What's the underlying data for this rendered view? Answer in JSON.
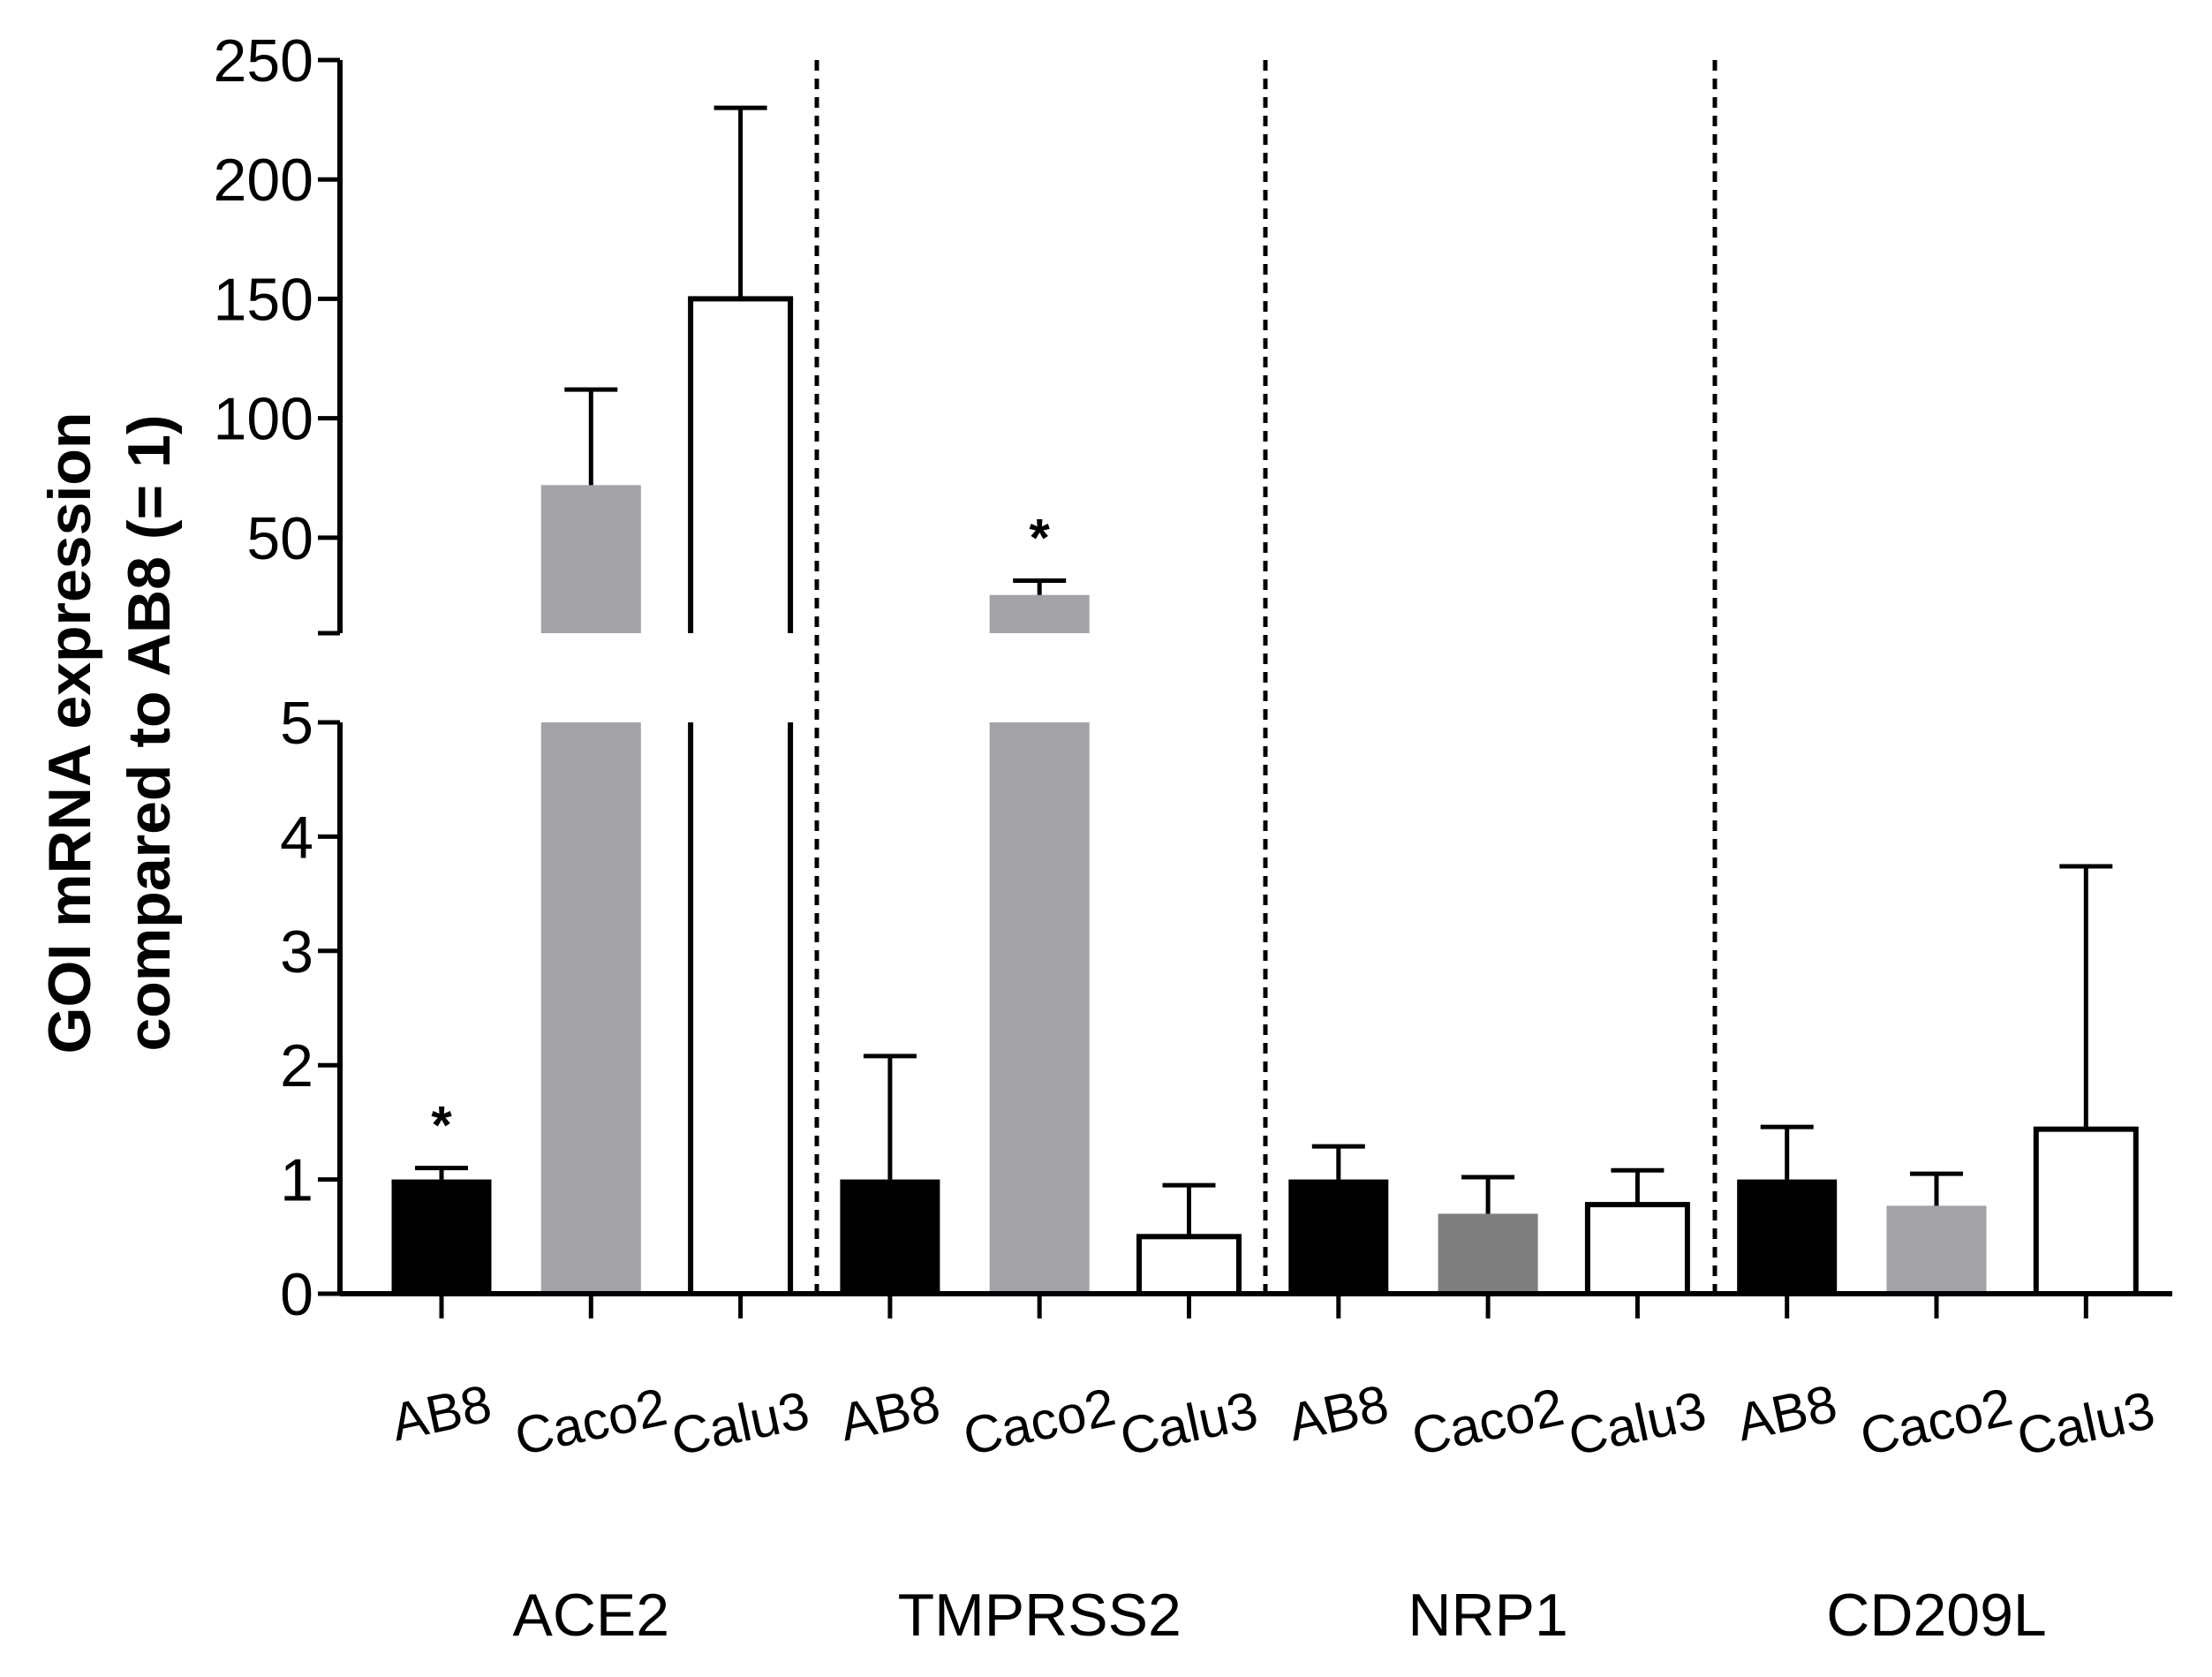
{
  "chart_data": {
    "type": "bar",
    "title": "",
    "xlabel": "",
    "ylabel_lines": [
      "GOI mRNA expression",
      "compared to AB8 (= 1)"
    ],
    "broken_y_axis": true,
    "lower_segment": {
      "ylim": [
        0,
        5
      ],
      "ticks": [
        "0",
        "1",
        "2",
        "3",
        "4",
        "5"
      ]
    },
    "upper_segment": {
      "ylim": [
        10,
        250
      ],
      "ticks": [
        "50",
        "100",
        "150",
        "200",
        "250"
      ]
    },
    "groups": [
      "ACE2",
      "TMPRSS2",
      "NRP1",
      "CD209L"
    ],
    "cell_lines": [
      "AB8",
      "Caco2",
      "Calu3"
    ],
    "bars": [
      {
        "group": "ACE2",
        "cell_line": "AB8",
        "value": 1.0,
        "error": 0.1,
        "fill": "#000000",
        "star": "*"
      },
      {
        "group": "ACE2",
        "cell_line": "Caco2",
        "value": 72,
        "error": 40,
        "fill": "#a2a2a7",
        "star": ""
      },
      {
        "group": "ACE2",
        "cell_line": "Calu3",
        "value": 150,
        "error": 80,
        "fill": "#ffffff",
        "star": ""
      },
      {
        "group": "TMPRSS2",
        "cell_line": "AB8",
        "value": 1.0,
        "error": 1.08,
        "fill": "#000000",
        "star": ""
      },
      {
        "group": "TMPRSS2",
        "cell_line": "Caco2",
        "value": 26,
        "error": 6,
        "fill": "#a2a2a7",
        "star": "*"
      },
      {
        "group": "TMPRSS2",
        "cell_line": "Calu3",
        "value": 0.5,
        "error": 0.45,
        "fill": "#ffffff",
        "star": ""
      },
      {
        "group": "NRP1",
        "cell_line": "AB8",
        "value": 1.0,
        "error": 0.29,
        "fill": "#000000",
        "star": ""
      },
      {
        "group": "NRP1",
        "cell_line": "Caco2",
        "value": 0.7,
        "error": 0.32,
        "fill": "#7f7f7f",
        "star": ""
      },
      {
        "group": "NRP1",
        "cell_line": "Calu3",
        "value": 0.78,
        "error": 0.3,
        "fill": "#ffffff",
        "star": ""
      },
      {
        "group": "CD209L",
        "cell_line": "AB8",
        "value": 1.0,
        "error": 0.46,
        "fill": "#000000",
        "star": ""
      },
      {
        "group": "CD209L",
        "cell_line": "Caco2",
        "value": 0.77,
        "error": 0.28,
        "fill": "#a2a2a7",
        "star": ""
      },
      {
        "group": "CD209L",
        "cell_line": "Calu3",
        "value": 1.44,
        "error": 2.3,
        "fill": "#ffffff",
        "star": ""
      }
    ],
    "group_separators": "dashed vertical lines between groups",
    "legend": "none"
  }
}
